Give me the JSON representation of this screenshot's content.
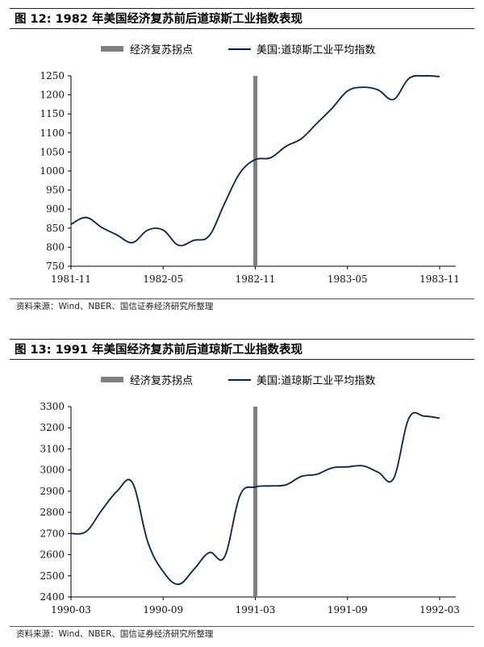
{
  "colors": {
    "turn_marker": "#808080",
    "dji_line": "#0b1f44"
  },
  "figures": [
    {
      "title": "图 12:  1982 年美国经济复苏前后道琼斯工业指数表现",
      "source": "资料来源：Wind、NBER、国信证券经济研究所整理",
      "chart_data": {
        "type": "line",
        "legend": [
          "经济复苏拐点",
          "美国:道琼斯工业平均指数"
        ],
        "legend_position": "top",
        "ylim": [
          750,
          1250
        ],
        "yticks": [
          "750",
          "800",
          "850",
          "900",
          "950",
          "1000",
          "1050",
          "1100",
          "1150",
          "1200",
          "1250"
        ],
        "xticks": [
          "1981-11",
          "1982-05",
          "1982-11",
          "1983-05",
          "1983-11"
        ],
        "xlim": [
          "1981-11",
          "1983-11"
        ],
        "turning_point": "1982-11",
        "grid": false,
        "series": [
          {
            "name": "美国:道琼斯工业平均指数",
            "x": [
              "1981-11",
              "1981-12",
              "1982-01",
              "1982-02",
              "1982-03",
              "1982-04",
              "1982-05",
              "1982-06",
              "1982-07",
              "1982-08",
              "1982-09",
              "1982-10",
              "1982-11",
              "1982-12",
              "1983-01",
              "1983-02",
              "1983-03",
              "1983-04",
              "1983-05",
              "1983-06",
              "1983-07",
              "1983-08",
              "1983-09",
              "1983-10",
              "1983-11"
            ],
            "values": [
              860,
              878,
              852,
              832,
              812,
              845,
              845,
              805,
              818,
              830,
              915,
              995,
              1030,
              1035,
              1065,
              1085,
              1125,
              1165,
              1210,
              1220,
              1213,
              1188,
              1243,
              1250,
              1248
            ]
          }
        ]
      }
    },
    {
      "title": "图 13:  1991 年美国经济复苏前后道琼斯工业指数表现",
      "source": "资料来源：Wind、NBER、国信证券经济研究所整理",
      "chart_data": {
        "type": "line",
        "legend": [
          "经济复苏拐点",
          "美国:道琼斯工业平均指数"
        ],
        "legend_position": "top",
        "ylim": [
          2400,
          3300
        ],
        "yticks": [
          "2400",
          "2500",
          "2600",
          "2700",
          "2800",
          "2900",
          "3000",
          "3100",
          "3200",
          "3300"
        ],
        "xticks": [
          "1990-03",
          "1990-09",
          "1991-03",
          "1991-09",
          "1992-03"
        ],
        "xlim": [
          "1990-03",
          "1992-03"
        ],
        "turning_point": "1991-03",
        "grid": false,
        "series": [
          {
            "name": "美国:道琼斯工业平均指数",
            "x": [
              "1990-03",
              "1990-04",
              "1990-05",
              "1990-06",
              "1990-07",
              "1990-08",
              "1990-09",
              "1990-10",
              "1990-11",
              "1990-12",
              "1991-01",
              "1991-02",
              "1991-03",
              "1991-04",
              "1991-05",
              "1991-06",
              "1991-07",
              "1991-08",
              "1991-09",
              "1991-10",
              "1991-11",
              "1991-12",
              "1992-01",
              "1992-02",
              "1992-03"
            ],
            "values": [
              2700,
              2710,
              2810,
              2900,
              2940,
              2660,
              2520,
              2460,
              2530,
              2610,
              2590,
              2880,
              2920,
              2925,
              2930,
              2970,
              2980,
              3010,
              3015,
              3020,
              2990,
              2960,
              3245,
              3255,
              3245
            ]
          }
        ]
      }
    }
  ]
}
